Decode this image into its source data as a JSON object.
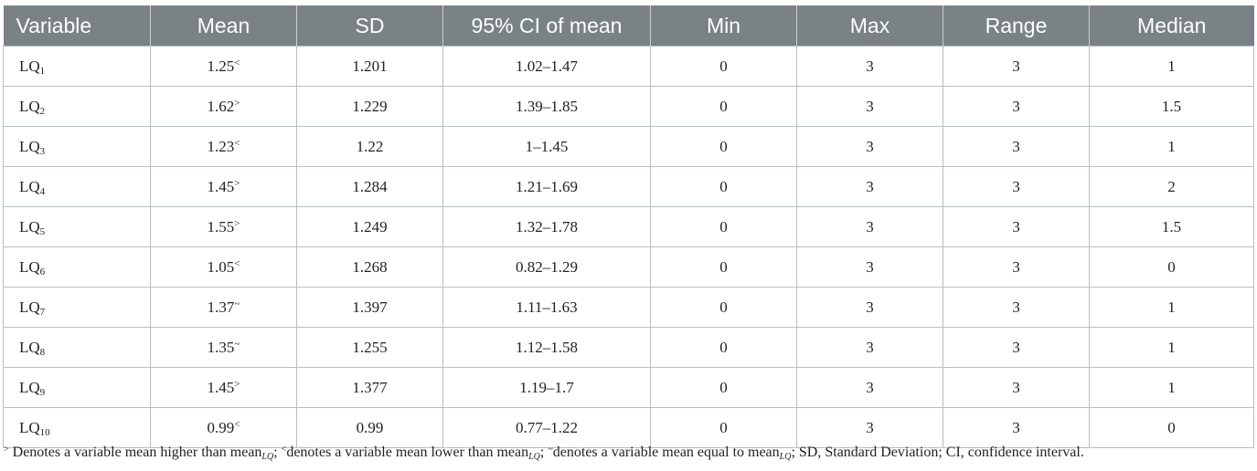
{
  "table": {
    "headers": [
      "Variable",
      "Mean",
      "SD",
      "95% CI of mean",
      "Min",
      "Max",
      "Range",
      "Median"
    ],
    "rows": [
      {
        "var_base": "LQ",
        "var_sub": "1",
        "mean": "1.25",
        "mean_mark": "<",
        "sd": "1.201",
        "ci": "1.02–1.47",
        "min": "0",
        "max": "3",
        "range": "3",
        "median": "1"
      },
      {
        "var_base": "LQ",
        "var_sub": "2",
        "mean": "1.62",
        "mean_mark": ">",
        "sd": "1.229",
        "ci": "1.39–1.85",
        "min": "0",
        "max": "3",
        "range": "3",
        "median": "1.5"
      },
      {
        "var_base": "LQ",
        "var_sub": "3",
        "mean": "1.23",
        "mean_mark": "<",
        "sd": "1.22",
        "ci": "1–1.45",
        "min": "0",
        "max": "3",
        "range": "3",
        "median": "1"
      },
      {
        "var_base": "LQ",
        "var_sub": "4",
        "mean": "1.45",
        "mean_mark": ">",
        "sd": "1.284",
        "ci": "1.21–1.69",
        "min": "0",
        "max": "3",
        "range": "3",
        "median": "2"
      },
      {
        "var_base": "LQ",
        "var_sub": "5",
        "mean": "1.55",
        "mean_mark": ">",
        "sd": "1.249",
        "ci": "1.32–1.78",
        "min": "0",
        "max": "3",
        "range": "3",
        "median": "1.5"
      },
      {
        "var_base": "LQ",
        "var_sub": "6",
        "mean": "1.05",
        "mean_mark": "<",
        "sd": "1.268",
        "ci": "0.82–1.29",
        "min": "0",
        "max": "3",
        "range": "3",
        "median": "0"
      },
      {
        "var_base": "LQ",
        "var_sub": "7",
        "mean": "1.37",
        "mean_mark": "~",
        "sd": "1.397",
        "ci": "1.11–1.63",
        "min": "0",
        "max": "3",
        "range": "3",
        "median": "1"
      },
      {
        "var_base": "LQ",
        "var_sub": "8",
        "mean": "1.35",
        "mean_mark": "~",
        "sd": "1.255",
        "ci": "1.12–1.58",
        "min": "0",
        "max": "3",
        "range": "3",
        "median": "1"
      },
      {
        "var_base": "LQ",
        "var_sub": "9",
        "mean": "1.45",
        "mean_mark": ">",
        "sd": "1.377",
        "ci": "1.19–1.7",
        "min": "0",
        "max": "3",
        "range": "3",
        "median": "1"
      },
      {
        "var_base": "LQ",
        "var_sub": "10",
        "mean": "0.99",
        "mean_mark": "<",
        "sd": "0.99",
        "ci": "0.77–1.22",
        "min": "0",
        "max": "3",
        "range": "3",
        "median": "0"
      }
    ]
  },
  "footnote": {
    "mark_gt": ">",
    "text_gt": " Denotes a variable mean higher than mean",
    "sub_lq": "LQ",
    "sep1": "; ",
    "mark_lt": "<",
    "text_lt": "denotes a variable mean lower than mean",
    "sep2": "; ",
    "mark_eq": "~",
    "text_eq": "denotes a variable mean equal to mean",
    "tail": "; SD, Standard Deviation; CI, confidence interval."
  }
}
